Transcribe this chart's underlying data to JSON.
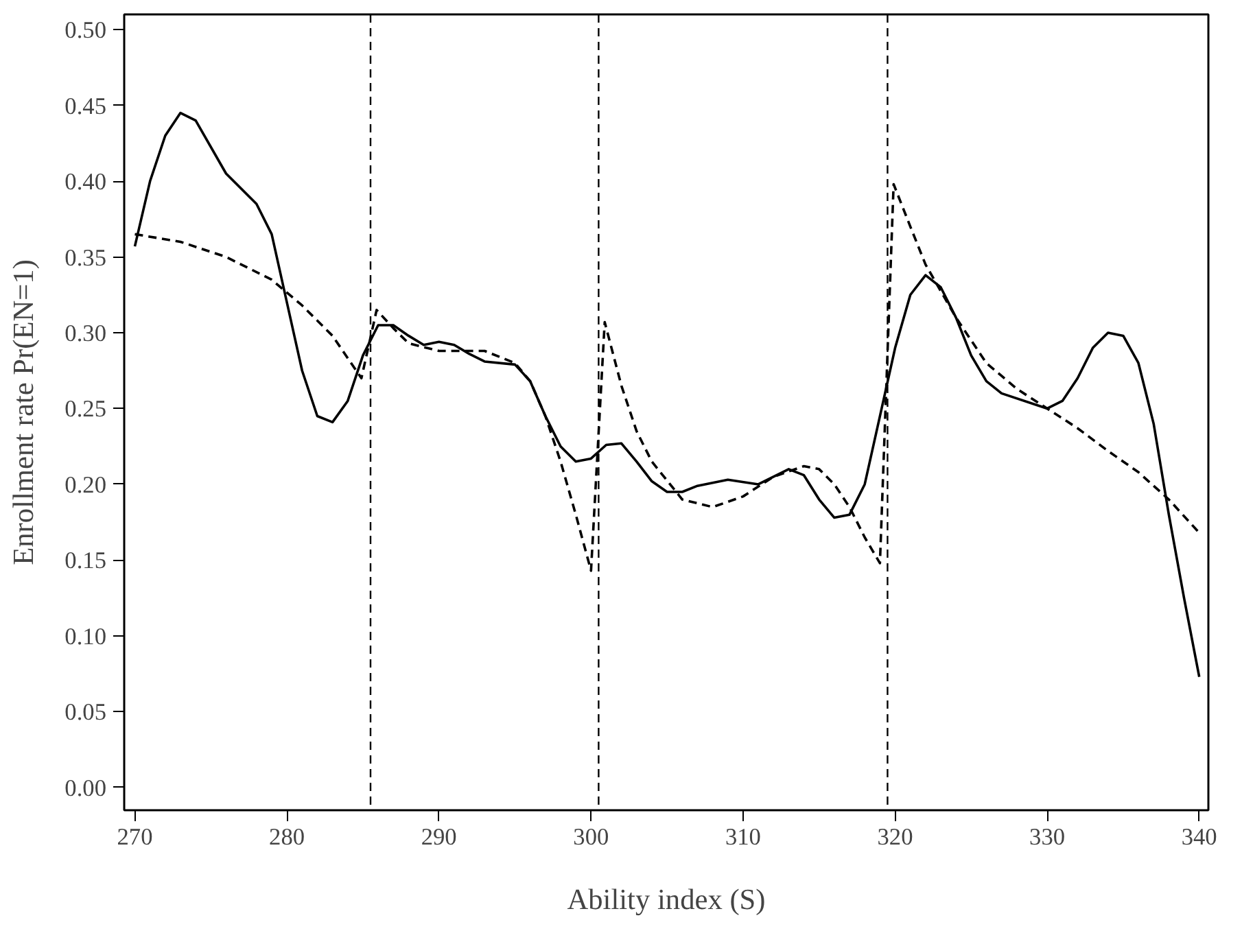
{
  "chart_data": {
    "type": "line",
    "xlabel": "Ability index (S)",
    "ylabel": "Enrollment rate Pr(EN=1)",
    "xlim": [
      269.3,
      340.6
    ],
    "ylim": [
      -0.015,
      0.51
    ],
    "xticks": [
      270,
      280,
      290,
      300,
      310,
      320,
      330,
      340
    ],
    "yticks": [
      {
        "value": 0,
        "label": "0.00"
      },
      {
        "value": 0.05,
        "label": "0.05"
      },
      {
        "value": 0.1,
        "label": "0.10"
      },
      {
        "value": 0.15,
        "label": "0.15"
      },
      {
        "value": 0.2,
        "label": "0.20"
      },
      {
        "value": 0.25,
        "label": "0.25"
      },
      {
        "value": 0.3,
        "label": "0.30"
      },
      {
        "value": 0.35,
        "label": "0.35"
      },
      {
        "value": 0.4,
        "label": "0.40"
      },
      {
        "value": 0.45,
        "label": "0.45"
      },
      {
        "value": 0.5,
        "label": "0.50"
      }
    ],
    "grid": false,
    "series": [
      {
        "color": "#000000",
        "line_style": "solid",
        "x": [
          270,
          271,
          272,
          273,
          274,
          276,
          278,
          279,
          280,
          281,
          282,
          283,
          284,
          285,
          286,
          287,
          288,
          289,
          290,
          291,
          292,
          293,
          295,
          296,
          297,
          298,
          299,
          300,
          301,
          302,
          303,
          304,
          305,
          306,
          307,
          309,
          311,
          313,
          314,
          315,
          316,
          317,
          318,
          319,
          320,
          321,
          322,
          323,
          324,
          325,
          326,
          327,
          330,
          331,
          332,
          333,
          334,
          335,
          336,
          337,
          338,
          339,
          340
        ],
        "values": [
          0.357,
          0.4,
          0.43,
          0.445,
          0.44,
          0.405,
          0.385,
          0.365,
          0.32,
          0.275,
          0.245,
          0.241,
          0.255,
          0.285,
          0.305,
          0.305,
          0.298,
          0.292,
          0.294,
          0.292,
          0.286,
          0.281,
          0.279,
          0.268,
          0.245,
          0.225,
          0.215,
          0.217,
          0.226,
          0.227,
          0.215,
          0.202,
          0.195,
          0.195,
          0.199,
          0.203,
          0.2,
          0.21,
          0.206,
          0.19,
          0.178,
          0.18,
          0.2,
          0.245,
          0.29,
          0.325,
          0.338,
          0.33,
          0.31,
          0.285,
          0.268,
          0.26,
          0.25,
          0.255,
          0.27,
          0.29,
          0.3,
          0.298,
          0.28,
          0.24,
          0.18,
          0.125,
          0.073
        ]
      },
      {
        "color": "#000000",
        "line_style": "dashed",
        "x": [
          270,
          273,
          276,
          279,
          281,
          283,
          284.9,
          285.9,
          287,
          288,
          290,
          293,
          295,
          296,
          297,
          298,
          299,
          300,
          300.9,
          302,
          303,
          304,
          306,
          308,
          310,
          312,
          314,
          315,
          316,
          317,
          318,
          319,
          319.9,
          321,
          322,
          324,
          326,
          328,
          330,
          332,
          334,
          336,
          338,
          340
        ],
        "values": [
          0.365,
          0.36,
          0.35,
          0.335,
          0.318,
          0.298,
          0.27,
          0.315,
          0.303,
          0.293,
          0.288,
          0.288,
          0.28,
          0.268,
          0.245,
          0.215,
          0.18,
          0.143,
          0.307,
          0.265,
          0.235,
          0.215,
          0.19,
          0.185,
          0.192,
          0.205,
          0.212,
          0.21,
          0.2,
          0.185,
          0.165,
          0.148,
          0.398,
          0.37,
          0.345,
          0.31,
          0.28,
          0.263,
          0.25,
          0.237,
          0.222,
          0.208,
          0.19,
          0.168
        ]
      }
    ],
    "ref_lines": [
      {
        "axis": "x",
        "value": 285.5,
        "line_style": "dashed",
        "color": "#000000"
      },
      {
        "axis": "x",
        "value": 300.5,
        "line_style": "dashed",
        "color": "#000000"
      },
      {
        "axis": "x",
        "value": 319.5,
        "line_style": "dashed",
        "color": "#000000"
      }
    ]
  }
}
